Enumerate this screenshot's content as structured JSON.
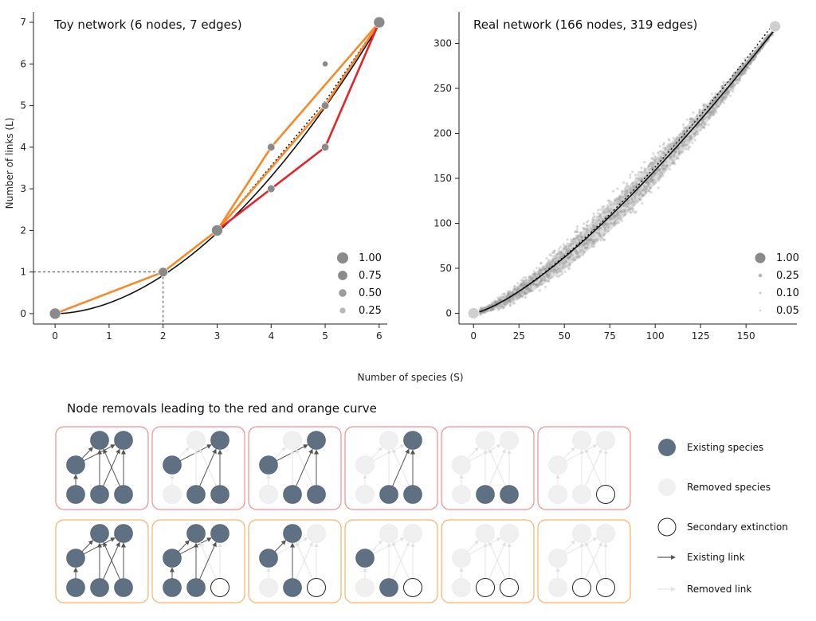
{
  "colors": {
    "red": "#e3242b",
    "orange": "#f6892a",
    "black": "#111111",
    "marker": "#8a8a8a",
    "cloud": "#9a9a9a",
    "node_existing": "#5e7081",
    "node_removed": "#f0f0f0",
    "frame_red": "#ef8f8f",
    "frame_orange": "#f4b469"
  },
  "shared_xlabel": "Number of species (S)",
  "chart_data": [
    {
      "type": "line",
      "title": "Toy network (6 nodes, 7 edges)",
      "xlabel": "",
      "ylabel": "Number of links (L)",
      "xlim": [
        -0.4,
        6.15
      ],
      "ylim": [
        -0.25,
        7.25
      ],
      "xticks": [
        0,
        1,
        2,
        3,
        4,
        5,
        6
      ],
      "yticks": [
        0,
        1,
        2,
        3,
        4,
        5,
        6,
        7
      ],
      "grid": false,
      "series": [
        {
          "color": "orange",
          "x": [
            0,
            2,
            3,
            4,
            6
          ],
          "y": [
            0,
            1,
            2,
            4,
            7
          ]
        },
        {
          "color": "orange",
          "x": [
            3,
            5,
            6
          ],
          "y": [
            2,
            5,
            7
          ]
        },
        {
          "color": "red",
          "x": [
            3,
            4,
            5,
            6
          ],
          "y": [
            2,
            3,
            4,
            7
          ]
        }
      ],
      "fit_curve": {
        "style": "solid",
        "color": "black",
        "form": "L = 0.257 * S^1.84"
      },
      "mean_curve": {
        "style": "dotted",
        "color": "black",
        "x": [
          2,
          3,
          4,
          5,
          6
        ],
        "y": [
          1,
          2,
          3.55,
          5.1,
          7
        ]
      },
      "points": [
        {
          "x": 0,
          "y": 0,
          "weight": 1.0
        },
        {
          "x": 2,
          "y": 1,
          "weight": 0.75
        },
        {
          "x": 3,
          "y": 2,
          "weight": 1.0
        },
        {
          "x": 4,
          "y": 3,
          "weight": 0.5
        },
        {
          "x": 4,
          "y": 4,
          "weight": 0.5
        },
        {
          "x": 5,
          "y": 4,
          "weight": 0.5
        },
        {
          "x": 5,
          "y": 5,
          "weight": 0.5
        },
        {
          "x": 5,
          "y": 6,
          "weight": 0.25
        },
        {
          "x": 6,
          "y": 7,
          "weight": 1.0
        }
      ],
      "reference_point": {
        "x": 2,
        "y": 1
      },
      "legend": {
        "placement": "bottom-right",
        "entries": [
          "1.00",
          "0.75",
          "0.50",
          "0.25"
        ],
        "weights": [
          1.0,
          0.75,
          0.5,
          0.25
        ]
      }
    },
    {
      "type": "scatter",
      "title": "Real network (166 nodes, 319 edges)",
      "xlabel": "",
      "ylabel": "",
      "xlim": [
        -8,
        178
      ],
      "ylim": [
        -12,
        335
      ],
      "xticks": [
        0,
        25,
        50,
        75,
        100,
        125,
        150
      ],
      "yticks": [
        0,
        50,
        100,
        150,
        200,
        250,
        300
      ],
      "grid": false,
      "endpoints": [
        {
          "x": 0,
          "y": 0
        },
        {
          "x": 166,
          "y": 319
        }
      ],
      "cloud": {
        "color": "cloud",
        "form": "L ≈ 0.31 * S^1.355 ± spread"
      },
      "fit_curve": {
        "style": "solid",
        "color": "black",
        "form": "L = 0.31 * S^1.355"
      },
      "mean_curve": {
        "style": "dotted",
        "color": "black",
        "form": "L = 0.31 * S^1.36"
      },
      "legend": {
        "placement": "bottom-right",
        "entries": [
          "1.00",
          "0.25",
          "0.10",
          "0.05"
        ],
        "weights": [
          1.0,
          0.25,
          0.1,
          0.05
        ]
      }
    }
  ],
  "diagram": {
    "title": "Node removals leading to the red and orange curve",
    "rows": [
      {
        "frame": "red",
        "panels": [
          {
            "existing": [
              1,
              2,
              3,
              4,
              5,
              6
            ],
            "secondary": []
          },
          {
            "existing": [
              2,
              3,
              4,
              6
            ],
            "secondary": []
          },
          {
            "existing": [
              2,
              3,
              4,
              6
            ],
            "secondary": []
          },
          {
            "existing": [
              2,
              3,
              6
            ],
            "secondary": []
          },
          {
            "existing": [
              2,
              3
            ],
            "secondary": []
          },
          {
            "existing": [],
            "secondary": [
              3
            ]
          }
        ]
      },
      {
        "frame": "orange",
        "panels": [
          {
            "existing": [
              1,
              2,
              3,
              4,
              5,
              6
            ],
            "secondary": []
          },
          {
            "existing": [
              1,
              2,
              4,
              5,
              6
            ],
            "secondary": [
              3
            ]
          },
          {
            "existing": [
              2,
              4,
              5
            ],
            "secondary": [
              3
            ]
          },
          {
            "existing": [
              2,
              4
            ],
            "secondary": [
              3
            ]
          },
          {
            "existing": [],
            "secondary": [
              2,
              3
            ]
          },
          {
            "existing": [],
            "secondary": [
              2,
              3
            ]
          }
        ]
      }
    ],
    "key": [
      {
        "kind": "existing",
        "label": "Existing species"
      },
      {
        "kind": "removed",
        "label": "Removed species"
      },
      {
        "kind": "secondary",
        "label": "Secondary extinction"
      },
      {
        "kind": "link",
        "label": "Existing link"
      },
      {
        "kind": "removed-link",
        "label": "Removed link"
      }
    ]
  }
}
